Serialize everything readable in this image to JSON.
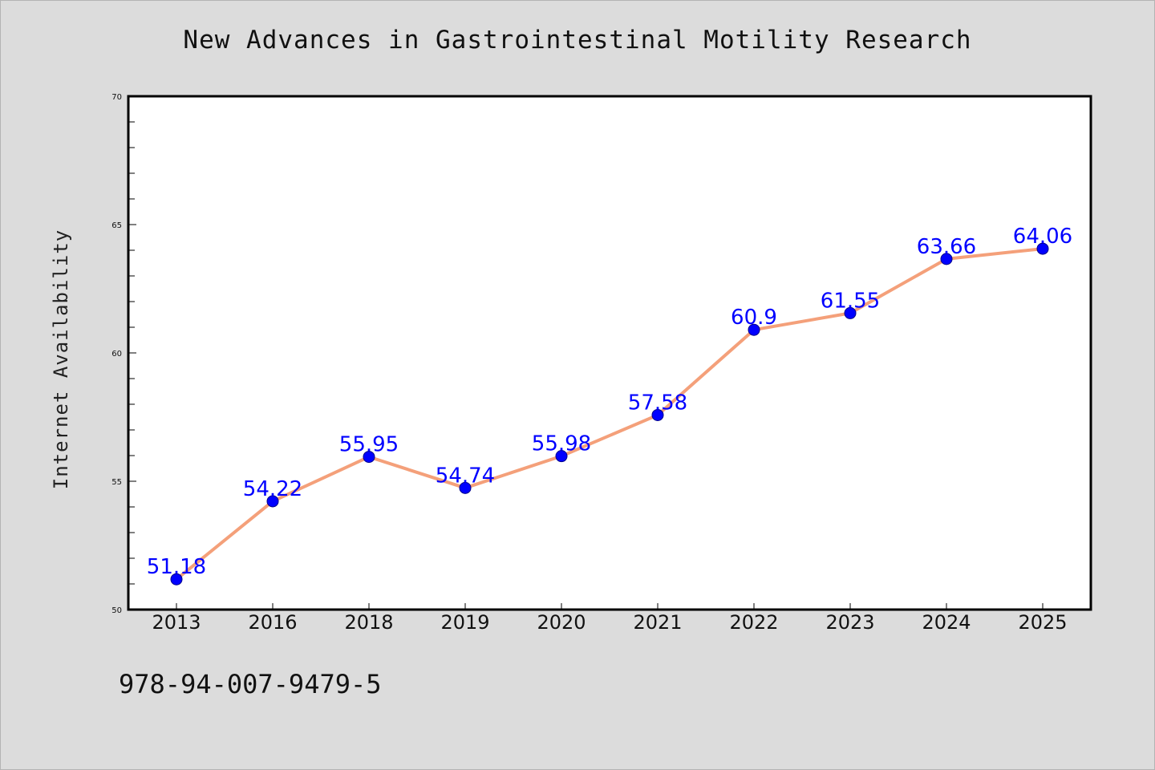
{
  "title": "New Advances in Gastrointestinal Motility Research",
  "footer_text": "978-94-007-9479-5",
  "colors": {
    "background": "#dcdcdc",
    "plot_background": "#ffffff",
    "line": "#f4a07a",
    "marker": "#0000ff",
    "label": "#0000ff"
  },
  "chart_data": {
    "type": "line",
    "title": "New Advances in Gastrointestinal Motility Research",
    "xlabel": "",
    "ylabel": "Internet Availability",
    "categories": [
      "2013",
      "2016",
      "2018",
      "2019",
      "2020",
      "2021",
      "2022",
      "2023",
      "2024",
      "2025"
    ],
    "values": [
      51.18,
      54.22,
      55.95,
      54.74,
      55.98,
      57.58,
      60.9,
      61.55,
      63.66,
      64.06
    ],
    "data_labels": [
      "51.18",
      "54.22",
      "55.95",
      "54.74",
      "55.98",
      "57.58",
      "60.9",
      "61.55",
      "63.66",
      "64.06"
    ],
    "ylim": [
      50,
      70
    ],
    "y_ticks": [
      "50",
      "55",
      "60",
      "65",
      "70"
    ],
    "grid": false,
    "legend": "none"
  }
}
